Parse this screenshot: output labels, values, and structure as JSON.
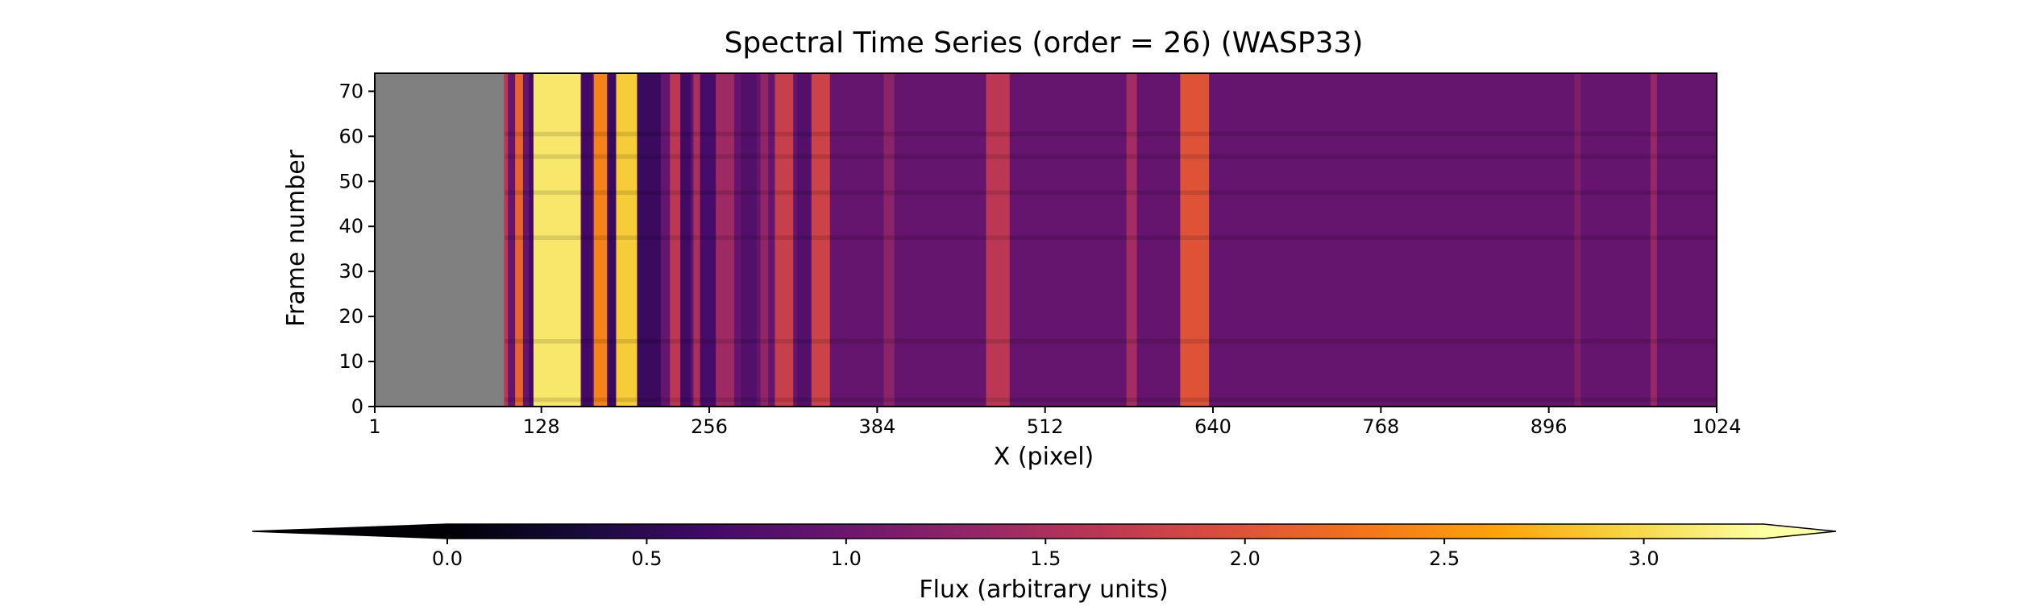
{
  "chart_data": {
    "type": "heatmap",
    "title": "Spectral Time Series (order = 26) (WASP33)",
    "xlabel": "X (pixel)",
    "ylabel": "Frame number",
    "xlim": [
      1,
      1024
    ],
    "ylim": [
      0,
      74
    ],
    "x_ticks": [
      1,
      128,
      256,
      384,
      512,
      640,
      768,
      896,
      1024
    ],
    "y_ticks": [
      0,
      10,
      20,
      30,
      40,
      50,
      60,
      70
    ],
    "masked_x_range": [
      1,
      100
    ],
    "masked_color": "#808080",
    "colormap": "inferno",
    "colorbar": {
      "label": "Flux (arbitrary units)",
      "vmin": 0.0,
      "vmax": 3.3,
      "ticks": [
        0.0,
        0.5,
        1.0,
        1.5,
        2.0,
        2.5,
        3.0
      ],
      "extend": "both",
      "orientation": "horizontal",
      "placement": "bottom"
    },
    "baseline_flux": 0.95,
    "absorption_lines": [
      {
        "x_center": 101,
        "width": 3,
        "flux": 1.65
      },
      {
        "x_center": 111,
        "width": 6,
        "flux": 2.15
      },
      {
        "x_center": 121,
        "width": 5,
        "flux": 0.65
      },
      {
        "x_center": 140,
        "width": 36,
        "flux": 3.1
      },
      {
        "x_center": 163,
        "width": 8,
        "flux": 0.65
      },
      {
        "x_center": 173,
        "width": 10,
        "flux": 2.4
      },
      {
        "x_center": 182,
        "width": 6,
        "flux": 0.6
      },
      {
        "x_center": 193,
        "width": 16,
        "flux": 2.9
      },
      {
        "x_center": 210,
        "width": 18,
        "flux": 0.6
      },
      {
        "x_center": 230,
        "width": 8,
        "flux": 1.65
      },
      {
        "x_center": 238,
        "width": 8,
        "flux": 0.65
      },
      {
        "x_center": 247,
        "width": 6,
        "flux": 1.5
      },
      {
        "x_center": 255,
        "width": 12,
        "flux": 0.7
      },
      {
        "x_center": 268,
        "width": 14,
        "flux": 1.4
      },
      {
        "x_center": 286,
        "width": 12,
        "flux": 0.8
      },
      {
        "x_center": 298,
        "width": 6,
        "flux": 1.3
      },
      {
        "x_center": 313,
        "width": 14,
        "flux": 1.75
      },
      {
        "x_center": 328,
        "width": 10,
        "flux": 0.8
      },
      {
        "x_center": 341,
        "width": 14,
        "flux": 1.8
      },
      {
        "x_center": 393,
        "width": 8,
        "flux": 1.25
      },
      {
        "x_center": 476,
        "width": 18,
        "flux": 1.65
      },
      {
        "x_center": 578,
        "width": 8,
        "flux": 1.45
      },
      {
        "x_center": 626,
        "width": 22,
        "flux": 2.0
      },
      {
        "x_center": 918,
        "width": 5,
        "flux": 1.15
      },
      {
        "x_center": 976,
        "width": 5,
        "flux": 1.35
      }
    ],
    "dark_frame_rows": [
      1,
      14,
      37,
      47,
      55,
      60
    ]
  }
}
